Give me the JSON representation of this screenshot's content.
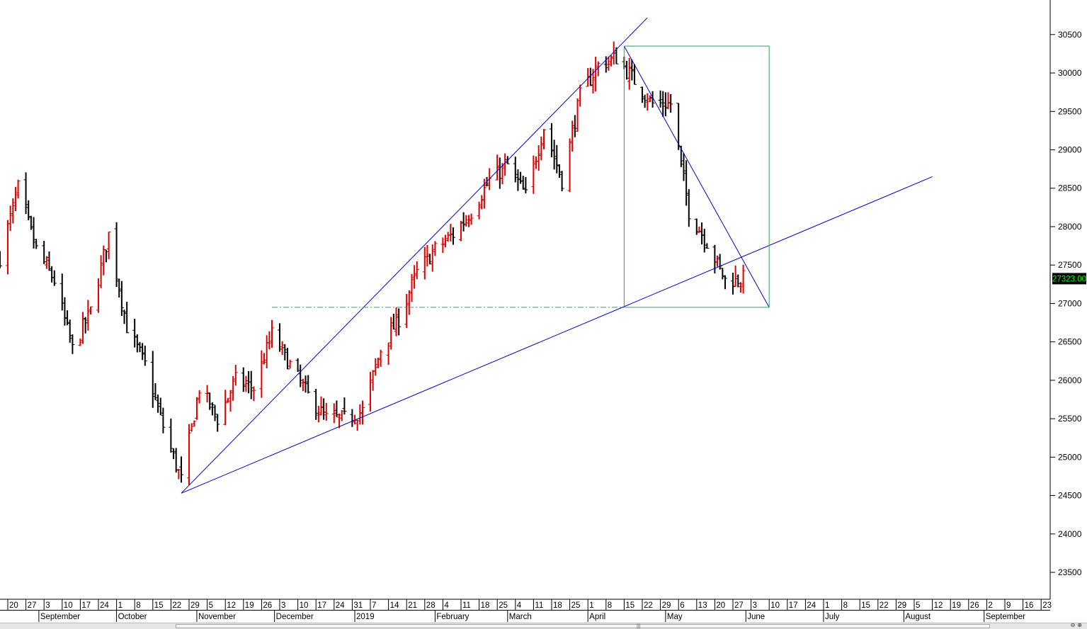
{
  "chart_data": {
    "type": "ohlc-bar",
    "title": "",
    "xlabel": "",
    "ylabel": "",
    "ylim": [
      23150,
      30950
    ],
    "y_ticks": [
      23500,
      24000,
      24500,
      25000,
      25500,
      26000,
      26500,
      27000,
      27500,
      28000,
      28500,
      29000,
      29500,
      30000,
      30500
    ],
    "last_price_label": "27323.00",
    "up_color": "#e00000",
    "down_color": "#000000",
    "line_color": "#0000cc",
    "box_color": "#2e9e6a",
    "grid": false,
    "start_date": "2018-08-17",
    "date_ticks": [
      "20",
      "27",
      "3",
      "10",
      "17",
      "24",
      "1",
      "8",
      "15",
      "22",
      "29",
      "5",
      "12",
      "19",
      "26",
      "3",
      "10",
      "17",
      "24",
      "31",
      "7",
      "14",
      "21",
      "28",
      "4",
      "11",
      "18",
      "25",
      "4",
      "11",
      "18",
      "25",
      "1",
      "8",
      "15",
      "22",
      "29",
      "6",
      "13",
      "20",
      "27",
      "3",
      "10",
      "17",
      "24",
      "1",
      "8",
      "15",
      "22",
      "29",
      "5",
      "12",
      "19",
      "26",
      "2",
      "9",
      "16",
      "23"
    ],
    "month_labels": [
      {
        "label": "September",
        "date": "2018-09-01"
      },
      {
        "label": "October",
        "date": "2018-10-01"
      },
      {
        "label": "November",
        "date": "2018-11-01"
      },
      {
        "label": "December",
        "date": "2018-12-01"
      },
      {
        "label": "2019",
        "date": "2019-01-01"
      },
      {
        "label": "February",
        "date": "2019-02-01"
      },
      {
        "label": "March",
        "date": "2019-03-01"
      },
      {
        "label": "April",
        "date": "2019-04-01"
      },
      {
        "label": "May",
        "date": "2019-05-01"
      },
      {
        "label": "June",
        "date": "2019-06-01"
      },
      {
        "label": "July",
        "date": "2019-07-01"
      },
      {
        "label": "August",
        "date": "2019-08-01"
      },
      {
        "label": "September",
        "date": "2019-09-01"
      }
    ],
    "anchors": [
      {
        "date": "2018-08-17",
        "close": 27600
      },
      {
        "date": "2018-08-24",
        "close": 28500
      },
      {
        "date": "2018-08-31",
        "close": 27700
      },
      {
        "date": "2018-09-07",
        "close": 27300
      },
      {
        "date": "2018-09-14",
        "close": 26400
      },
      {
        "date": "2018-09-21",
        "close": 26900
      },
      {
        "date": "2018-09-28",
        "close": 27900
      },
      {
        "date": "2018-10-05",
        "close": 26700
      },
      {
        "date": "2018-10-12",
        "close": 26200
      },
      {
        "date": "2018-10-19",
        "close": 25400
      },
      {
        "date": "2018-10-26",
        "close": 24700
      },
      {
        "date": "2018-11-02",
        "close": 25900
      },
      {
        "date": "2018-11-09",
        "close": 25500
      },
      {
        "date": "2018-11-16",
        "close": 26000
      },
      {
        "date": "2018-11-23",
        "close": 25900
      },
      {
        "date": "2018-11-30",
        "close": 26600
      },
      {
        "date": "2018-12-07",
        "close": 26200
      },
      {
        "date": "2018-12-14",
        "close": 25800
      },
      {
        "date": "2018-12-21",
        "close": 25500
      },
      {
        "date": "2018-12-28",
        "close": 25500
      },
      {
        "date": "2019-01-04",
        "close": 25600
      },
      {
        "date": "2019-01-11",
        "close": 26400
      },
      {
        "date": "2019-01-18",
        "close": 26800
      },
      {
        "date": "2019-01-25",
        "close": 27400
      },
      {
        "date": "2019-02-01",
        "close": 27700
      },
      {
        "date": "2019-02-08",
        "close": 27900
      },
      {
        "date": "2019-02-15",
        "close": 28200
      },
      {
        "date": "2019-02-22",
        "close": 28600
      },
      {
        "date": "2019-03-01",
        "close": 28800
      },
      {
        "date": "2019-03-08",
        "close": 28400
      },
      {
        "date": "2019-03-15",
        "close": 29300
      },
      {
        "date": "2019-03-22",
        "close": 28600
      },
      {
        "date": "2019-03-29",
        "close": 29700
      },
      {
        "date": "2019-04-05",
        "close": 30100
      },
      {
        "date": "2019-04-12",
        "close": 30200
      },
      {
        "date": "2019-04-19",
        "close": 29900
      },
      {
        "date": "2019-04-26",
        "close": 29600
      },
      {
        "date": "2019-05-03",
        "close": 29600
      },
      {
        "date": "2019-05-10",
        "close": 28200
      },
      {
        "date": "2019-05-17",
        "close": 27800
      },
      {
        "date": "2019-05-24",
        "close": 27300
      },
      {
        "date": "2019-05-31",
        "close": 27323
      }
    ],
    "drawings": {
      "uptrend_lines": [
        {
          "from": {
            "date": "2018-10-26",
            "price": 24530
          },
          "to": {
            "date": "2019-04-15",
            "price": 30350
          },
          "extend_to": {
            "date": "2019-04-24",
            "price": 30720
          }
        },
        {
          "from": {
            "date": "2018-10-26",
            "price": 24530
          },
          "to": {
            "date": "2019-08-12",
            "price": 28650
          }
        }
      ],
      "downtrend_line": {
        "from": {
          "date": "2019-04-15",
          "price": 30350
        },
        "to": {
          "date": "2019-06-10",
          "price": 26950
        }
      },
      "box": {
        "from_date": "2019-04-15",
        "to_date": "2019-06-10",
        "top": 30350,
        "bottom": 26950
      },
      "dash_dot_line": {
        "from_date": "2018-11-30",
        "to_date": "2019-04-15",
        "price": 26950
      }
    }
  }
}
